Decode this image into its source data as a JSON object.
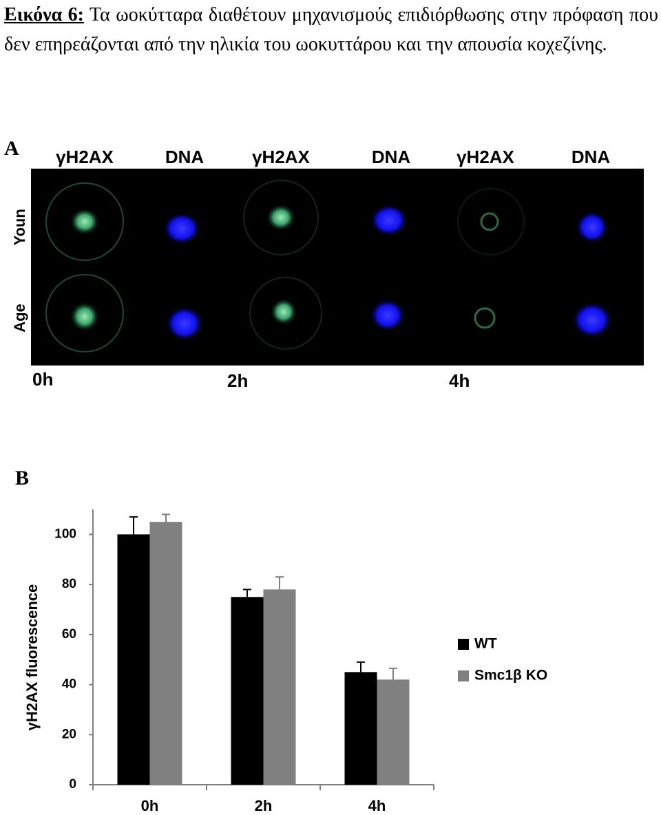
{
  "caption": {
    "label": "Εικόνα 6:",
    "text": "Τα ωοκύτταρα διαθέτουν μηχανισμούς επιδιόρθωσης στην πρόφαση που δεν επηρεάζονται από την ηλικία του ωοκυττάρου και την απουσία κοχεζίνης."
  },
  "panel_a": {
    "label": "A",
    "columns": [
      "γH2AX",
      "DNA",
      "γH2AX",
      "DNA",
      "γH2AX",
      "DNA"
    ],
    "rows": [
      "Youn",
      "Age"
    ],
    "times": [
      "0h",
      "2h",
      "4h"
    ]
  },
  "chart_data": {
    "type": "bar",
    "panel_label": "B",
    "y_label": "γH2AX fluorescence",
    "categories": [
      "0h",
      "2h",
      "4h"
    ],
    "series": [
      {
        "name": "WT",
        "color": "#000000",
        "values": [
          100,
          75,
          45
        ],
        "errors": [
          7,
          3,
          4
        ]
      },
      {
        "name": "Smc1β KO",
        "color": "#808080",
        "values": [
          105,
          78,
          42
        ],
        "errors": [
          3,
          5,
          4.5
        ]
      }
    ],
    "ylim": [
      0,
      110
    ],
    "yticks": [
      0,
      20,
      40,
      60,
      80,
      100
    ],
    "grid": false,
    "legend": "right"
  }
}
